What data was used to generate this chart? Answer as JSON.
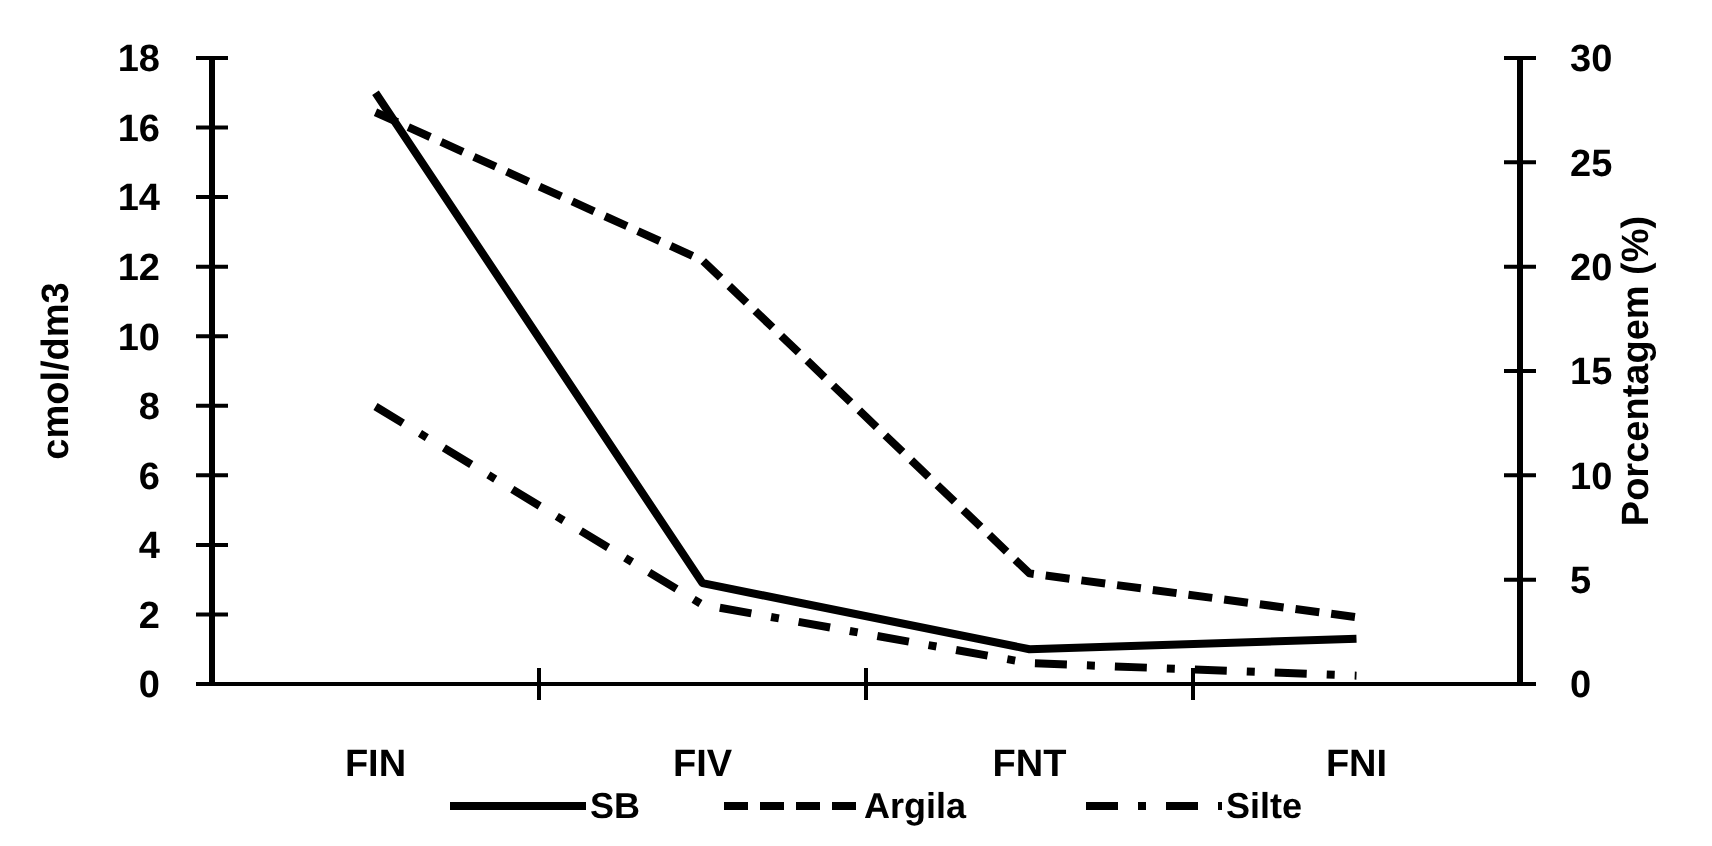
{
  "chart_data": {
    "type": "line",
    "ylabel": "cmol/dm3",
    "y2label": "Porcentagem (%)",
    "categories": [
      "FIN",
      "FIV",
      "FNT",
      "FNI"
    ],
    "series": [
      {
        "name": "SB",
        "color": "#000000",
        "values": [
          17.0,
          2.9,
          1.0,
          1.3
        ],
        "line_style": "solid"
      },
      {
        "name": "Argila",
        "color": "#000000",
        "values": [
          27.4,
          20.3,
          5.3,
          3.2
        ],
        "axis": "y2",
        "line_style": "dashed"
      },
      {
        "name": "Silte",
        "color": "#000000",
        "values": [
          13.3,
          3.8,
          1.0,
          0.4
        ],
        "axis": "y2",
        "line_style": "dashdot"
      }
    ],
    "ylim": [
      0,
      18
    ],
    "yticks": [
      0,
      2,
      4,
      6,
      8,
      10,
      12,
      14,
      16,
      18
    ],
    "y2lim": [
      0,
      30
    ],
    "y2ticks": [
      0,
      5,
      10,
      15,
      20,
      25,
      30
    ],
    "legend": "bottom",
    "grid": false,
    "marker": "none"
  }
}
